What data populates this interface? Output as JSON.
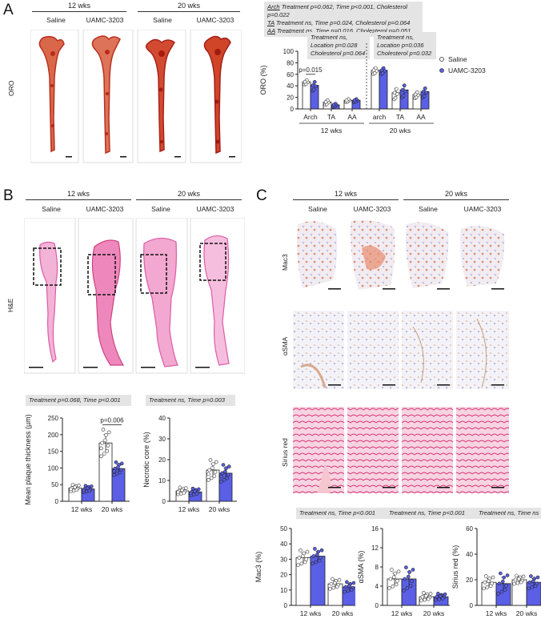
{
  "panel_labels": {
    "a": "A",
    "b": "B",
    "c": "C"
  },
  "groups": {
    "wk12": "12 wks",
    "wk20": "20 wks"
  },
  "treatments": {
    "saline": "Saline",
    "uamc": "UAMC-3203"
  },
  "rows": {
    "oro": "ORO",
    "he": "H&E",
    "mac3": "Mac3",
    "asma": "αSMA",
    "sirius": "Sirius red"
  },
  "stats_a": {
    "arch_label": "Arch",
    "arch_text": " Treatment p=0.062, Time p<0.001, Cholesterol p=0.022",
    "ta_label": "TA",
    "ta_text": " Treatment ns, Time p=0.024, Cholesterol p=0.064",
    "aa_label": "AA",
    "aa_text": " Treatment ns, Time p=0.016, Cholesterol p=0.051",
    "left_box": [
      "Treatment ns,",
      "Location p=0.028",
      "Cholesterol p=0.064"
    ],
    "right_box": [
      "Treatment ns,",
      "Location p=0.036",
      "Cholesterol p=0.032"
    ]
  },
  "stats_b": {
    "thickness": "Treatment p=0.068, Time p<0.001",
    "necrotic": "Treatment ns, Time p=0.003"
  },
  "stats_c": {
    "mac3": "Treatment ns, Time p<0.001",
    "asma": "Treatment ns, Time p<0.001",
    "sirius": "Treatment ns, Time ns"
  },
  "colors": {
    "saline_fill": "#ffffff",
    "uamc_fill": "#5a5fe6",
    "axis": "#222222",
    "label_bg": "#e4e4e4"
  },
  "chart_data": [
    {
      "id": "oro",
      "type": "bar",
      "ylabel": "ORO (%)",
      "ylim": [
        0,
        100
      ],
      "yticks": [
        0,
        20,
        40,
        60,
        80,
        100
      ],
      "categories": [
        "Arch",
        "TA",
        "AA",
        "arch",
        "TA",
        "AA"
      ],
      "group_labels": [
        "12 wks",
        "20 wks"
      ],
      "series": [
        {
          "name": "Saline",
          "values": [
            47,
            12,
            15,
            67,
            28,
            25
          ],
          "err": [
            3,
            3,
            2,
            4,
            7,
            4
          ]
        },
        {
          "name": "UAMC-3203",
          "values": [
            41,
            7,
            15,
            67,
            33,
            30
          ],
          "err": [
            6,
            2,
            2,
            4,
            8,
            6
          ]
        }
      ],
      "annotations": [
        {
          "text": "p=0.015"
        }
      ],
      "legend": {
        "saline": "Saline",
        "uamc": "UAMC-3203",
        "placement": "right"
      }
    },
    {
      "id": "thickness",
      "type": "bar",
      "ylabel": "Mean plaque thickness (µm)",
      "ylim": [
        0,
        250
      ],
      "yticks": [
        0,
        50,
        100,
        150,
        200,
        250
      ],
      "categories": [
        "12 wks",
        "20 wks"
      ],
      "series": [
        {
          "name": "Saline",
          "values": [
            40,
            175
          ],
          "err": [
            6,
            25
          ]
        },
        {
          "name": "UAMC-3203",
          "values": [
            37,
            98
          ],
          "err": [
            6,
            12
          ]
        }
      ],
      "annotations": [
        {
          "text": "p=0.006"
        }
      ]
    },
    {
      "id": "necrotic",
      "type": "bar",
      "ylabel": "Necrotic core (%)",
      "ylim": [
        0,
        40
      ],
      "yticks": [
        0,
        10,
        20,
        30,
        40
      ],
      "categories": [
        "12 wks",
        "20 wks"
      ],
      "series": [
        {
          "name": "Saline",
          "values": [
            5,
            15
          ],
          "err": [
            1,
            3
          ]
        },
        {
          "name": "UAMC-3203",
          "values": [
            4.5,
            13.5
          ],
          "err": [
            1,
            2.5
          ]
        }
      ]
    },
    {
      "id": "mac3",
      "type": "bar",
      "ylabel": "Mac3 (%)",
      "ylim": [
        0,
        50
      ],
      "yticks": [
        0,
        10,
        20,
        30,
        40,
        50
      ],
      "categories": [
        "12 wks",
        "20 wks"
      ],
      "series": [
        {
          "name": "Saline",
          "values": [
            31,
            14
          ],
          "err": [
            3,
            2
          ]
        },
        {
          "name": "UAMC-3203",
          "values": [
            32,
            12
          ],
          "err": [
            3,
            2
          ]
        }
      ]
    },
    {
      "id": "asma",
      "type": "bar",
      "ylabel": "αSMA (%)",
      "ylim": [
        0,
        16
      ],
      "yticks": [
        0,
        4,
        8,
        12,
        16
      ],
      "categories": [
        "12 wks",
        "20 wks"
      ],
      "series": [
        {
          "name": "Saline",
          "values": [
            5.5,
            1.8
          ],
          "err": [
            1.2,
            0.5
          ]
        },
        {
          "name": "UAMC-3203",
          "values": [
            5.5,
            1.8
          ],
          "err": [
            1.5,
            0.4
          ]
        }
      ]
    },
    {
      "id": "sirius",
      "type": "bar",
      "ylabel": "Sirius red (%)",
      "ylim": [
        0,
        60
      ],
      "yticks": [
        0,
        20,
        40,
        60
      ],
      "categories": [
        "12 wks",
        "20 wks"
      ],
      "series": [
        {
          "name": "Saline",
          "values": [
            18,
            20
          ],
          "err": [
            3,
            2
          ]
        },
        {
          "name": "UAMC-3203",
          "values": [
            17,
            18
          ],
          "err": [
            5,
            3
          ]
        }
      ]
    }
  ]
}
